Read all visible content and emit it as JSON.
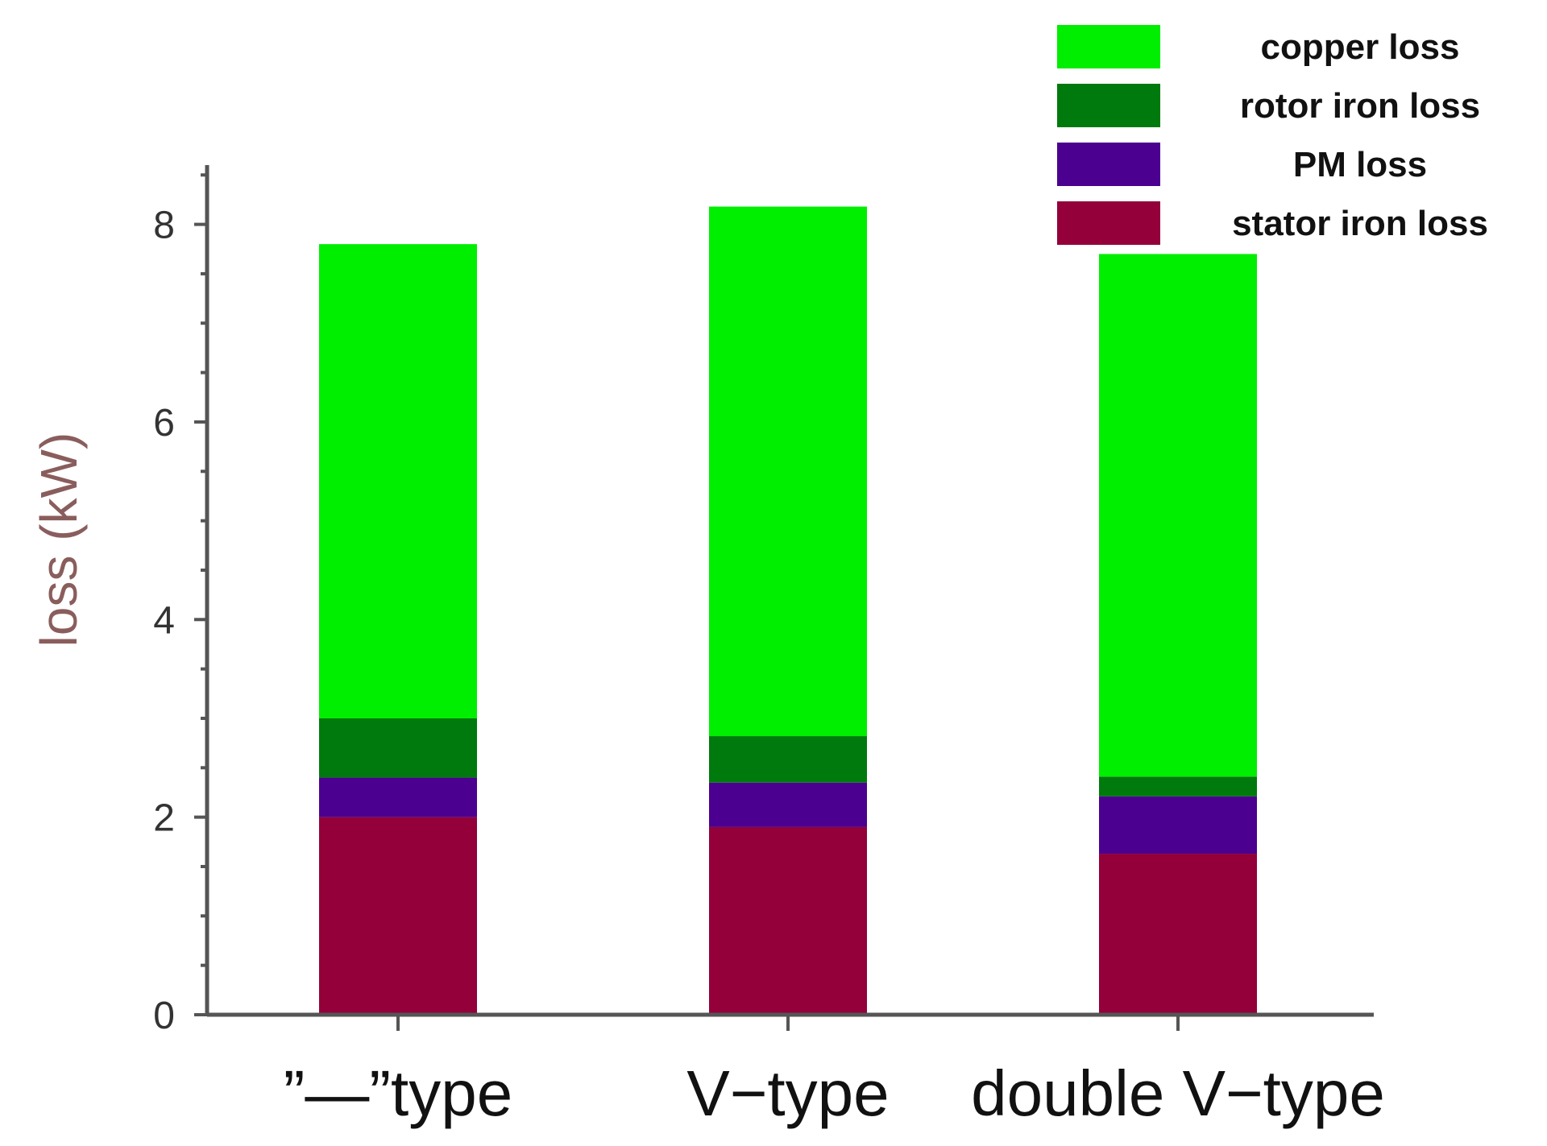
{
  "chart_data": {
    "type": "bar",
    "stacked": true,
    "categories": [
      "”—”type",
      "V−type",
      "double V−type"
    ],
    "series": [
      {
        "name": "stator iron loss",
        "color": "#93003a",
        "values": [
          2.0,
          1.9,
          1.63
        ]
      },
      {
        "name": "PM loss",
        "color": "#4b0090",
        "values": [
          0.4,
          0.45,
          0.58
        ]
      },
      {
        "name": "rotor iron loss",
        "color": "#007a0d",
        "values": [
          0.6,
          0.47,
          0.2
        ]
      },
      {
        "name": "copper loss",
        "color": "#00ee00",
        "values": [
          4.8,
          5.36,
          5.29
        ]
      }
    ],
    "legend_order": [
      "copper loss",
      "rotor iron loss",
      "PM loss",
      "stator iron loss"
    ],
    "ylabel": "loss (kW)",
    "xlabel": "",
    "ylim": [
      0,
      8.6
    ],
    "yticks": [
      0,
      2,
      4,
      6,
      8
    ],
    "grid": false,
    "legend_position": "top-right"
  }
}
